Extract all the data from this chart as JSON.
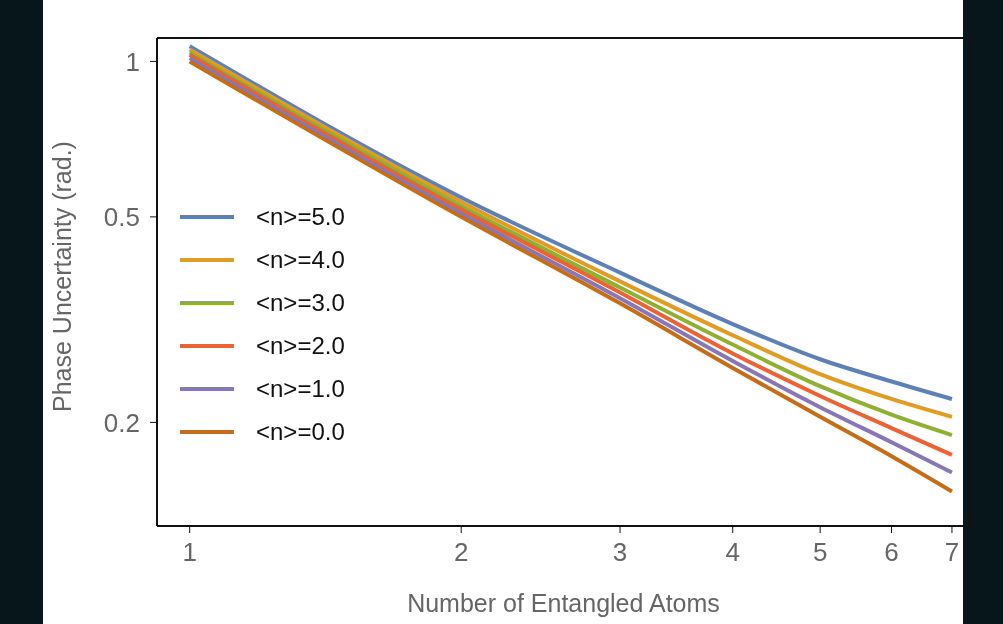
{
  "chart_data": {
    "type": "line",
    "xlabel": "Number of Entangled Atoms",
    "ylabel": "Phase Uncertainty (rad.)",
    "x": [
      1,
      2,
      3,
      4,
      5,
      6,
      7
    ],
    "series": [
      {
        "name": "<n>=5.0",
        "color": "#5e81b5",
        "values": [
          1.07,
          0.545,
          0.39,
          0.31,
          0.265,
          0.24,
          0.222
        ]
      },
      {
        "name": "<n>=4.0",
        "color": "#e19c24",
        "values": [
          1.055,
          0.535,
          0.375,
          0.295,
          0.248,
          0.222,
          0.205
        ]
      },
      {
        "name": "<n>=3.0",
        "color": "#8fb032",
        "values": [
          1.04,
          0.525,
          0.365,
          0.283,
          0.235,
          0.207,
          0.189
        ]
      },
      {
        "name": "<n>=2.0",
        "color": "#eb6235",
        "values": [
          1.03,
          0.517,
          0.357,
          0.272,
          0.225,
          0.195,
          0.173
        ]
      },
      {
        "name": "<n>=1.0",
        "color": "#8778b3",
        "values": [
          1.015,
          0.508,
          0.348,
          0.263,
          0.214,
          0.183,
          0.16
        ]
      },
      {
        "name": "<n>=0.0",
        "color": "#c56e1a",
        "values": [
          1.0,
          0.5,
          0.34,
          0.255,
          0.205,
          0.172,
          0.147
        ]
      }
    ],
    "log": "xy",
    "xlim": [
      0.92,
      7.33
    ],
    "ylim": [
      0.126,
      1.11
    ],
    "xticks": [
      1,
      2,
      3,
      4,
      5,
      6,
      7
    ],
    "yticks": [
      0.2,
      0.5,
      1
    ],
    "grid": false,
    "legend": "left",
    "marker": "none",
    "line_style": "solid"
  }
}
